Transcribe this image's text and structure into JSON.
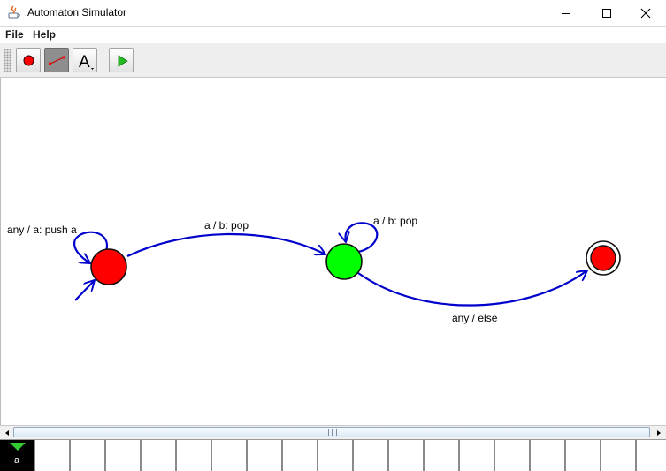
{
  "window": {
    "title": "Automaton Simulator",
    "controls": [
      "minimize",
      "maximize",
      "close"
    ]
  },
  "menu": {
    "items": [
      {
        "label": "File"
      },
      {
        "label": "Help"
      }
    ]
  },
  "toolbar": {
    "tools": [
      {
        "name": "state-tool",
        "icon": "red-circle-icon",
        "pressed": false
      },
      {
        "name": "transition-tool",
        "icon": "line-connector-icon",
        "pressed": true
      },
      {
        "name": "text-tool",
        "icon": "text-a-icon",
        "label": "A",
        "pressed": false
      },
      {
        "name": "run",
        "icon": "play-icon",
        "pressed": false
      }
    ]
  },
  "automaton": {
    "states": [
      {
        "id": "q0",
        "color": "#ff0000",
        "initial": true,
        "accepting": false
      },
      {
        "id": "q1",
        "color": "#00ff00",
        "initial": false,
        "accepting": false
      },
      {
        "id": "q2",
        "color": "#ff0000",
        "initial": false,
        "accepting": true
      }
    ],
    "transitions": [
      {
        "from": "q0",
        "to": "q0",
        "label": "any / a: push a"
      },
      {
        "from": "q0",
        "to": "q1",
        "label": "a / b: pop"
      },
      {
        "from": "q1",
        "to": "q1",
        "label": "a / b: pop"
      },
      {
        "from": "q1",
        "to": "q2",
        "label": "any / else"
      }
    ],
    "edge_color": "#0000cc"
  },
  "tape": {
    "cells": [
      "a",
      "",
      "",
      "",
      "",
      "",
      "",
      "",
      "",
      "",
      "",
      "",
      "",
      "",
      "",
      "",
      "",
      "",
      ""
    ],
    "head_index": 0,
    "head_color": "#33cc33"
  }
}
